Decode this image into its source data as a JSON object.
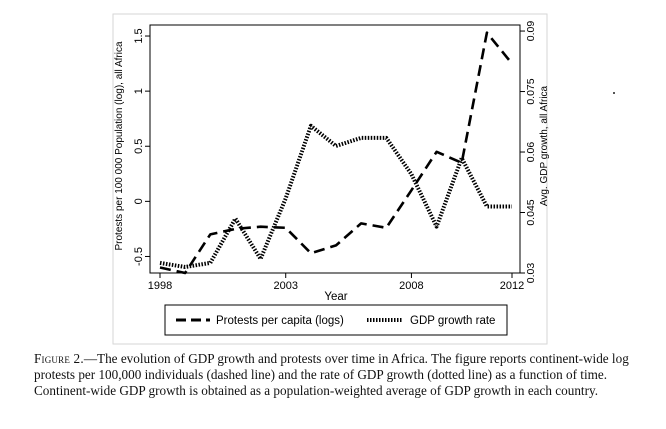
{
  "chart_data": {
    "type": "line",
    "title": "",
    "xlabel": "Year",
    "ylabel_left": "Protests per 100 000 Population (log), all Africa",
    "ylabel_right": "Avg. GDP growth, all Africa",
    "xlim": [
      1998,
      2012
    ],
    "ylim_left": [
      -0.65,
      1.6
    ],
    "ylim_right": [
      0.03,
      0.0915
    ],
    "x_ticks": [
      {
        "value": 1998,
        "label": "1998"
      },
      {
        "value": 2003,
        "label": "2003"
      },
      {
        "value": 2008,
        "label": "2008"
      },
      {
        "value": 2012,
        "label": "2012"
      }
    ],
    "y_ticks_left": [
      {
        "value": -0.5,
        "label": "-0.5"
      },
      {
        "value": 0,
        "label": "0"
      },
      {
        "value": 0.5,
        "label": "0.5"
      },
      {
        "value": 1,
        "label": "1"
      },
      {
        "value": 1.5,
        "label": "1.5"
      }
    ],
    "y_ticks_right": [
      {
        "value": 0.03,
        "label": "0.03"
      },
      {
        "value": 0.045,
        "label": "0.045"
      },
      {
        "value": 0.06,
        "label": "0.06"
      },
      {
        "value": 0.075,
        "label": "0.075"
      },
      {
        "value": 0.09,
        "label": "0.09"
      }
    ],
    "grid": false,
    "legend_position": "bottom",
    "series": [
      {
        "name": "Protests per capita (logs)",
        "axis": "left",
        "style": "dashed",
        "x": [
          1998,
          1999,
          2000,
          2001,
          2002,
          2003,
          2004,
          2005,
          2006,
          2007,
          2008,
          2009,
          2010,
          2011,
          2012
        ],
        "values": [
          -0.6,
          -0.65,
          -0.3,
          -0.25,
          -0.23,
          -0.24,
          -0.47,
          -0.4,
          -0.2,
          -0.24,
          0.1,
          0.45,
          0.35,
          1.53,
          1.25
        ]
      },
      {
        "name": "GDP growth rate",
        "axis": "right",
        "style": "dotted",
        "x": [
          1998,
          1999,
          2000,
          2001,
          2002,
          2003,
          2004,
          2005,
          2006,
          2007,
          2008,
          2009,
          2010,
          2011,
          2012
        ],
        "values": [
          0.0325,
          0.0315,
          0.0325,
          0.0435,
          0.0335,
          0.0485,
          0.0665,
          0.0615,
          0.0635,
          0.0635,
          0.0545,
          0.0415,
          0.0585,
          0.0465,
          0.0465
        ]
      }
    ]
  },
  "caption": {
    "figure_label": "Figure 2.",
    "text": "—The evolution of GDP growth and protests over time in Africa. The figure reports continent-wide log protests per 100,000 individuals (dashed line) and the rate of GDP growth (dotted line) as a function of time. Continent-wide GDP growth is obtained as a population-weighted average of GDP growth in each country."
  }
}
